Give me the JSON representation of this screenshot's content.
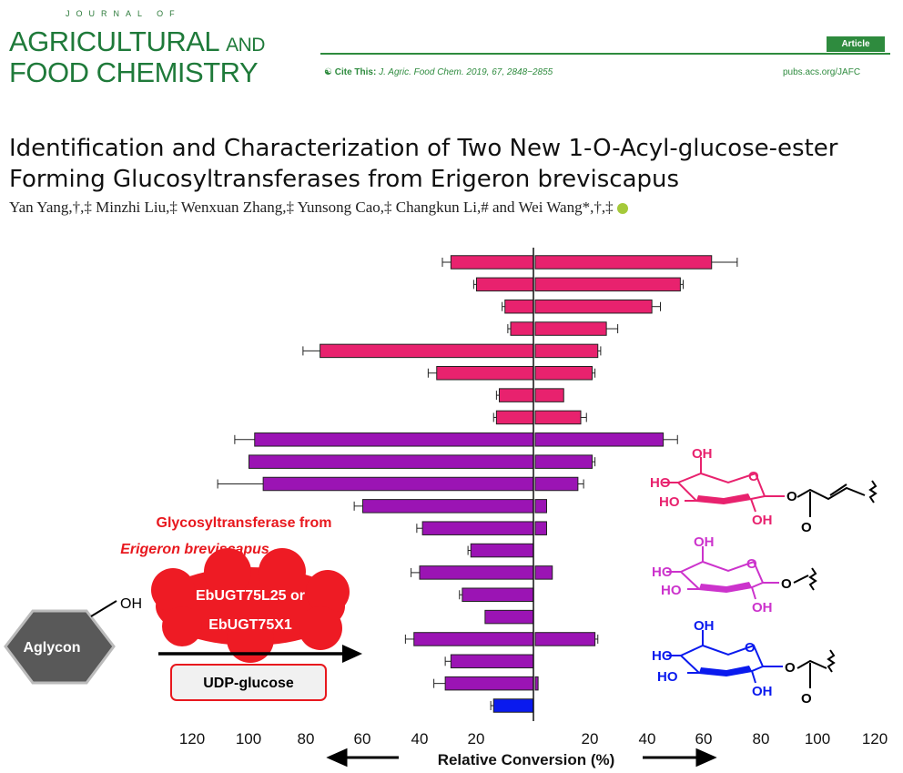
{
  "journal": {
    "line1": "JOURNAL OF",
    "line2": "AGRICULTURAL",
    "line2_and": "AND",
    "line3": "FOOD CHEMISTRY",
    "badge": "Article",
    "cite_label": "Cite This:",
    "cite_text": "J. Agric. Food Chem. 2019, 67, 2848−2855",
    "url": "pubs.acs.org/JAFC"
  },
  "paper": {
    "title": "Identification and Characterization of Two New 1-O-Acyl-glucose-ester Forming Glucosyltransferases from Erigeron breviscapus",
    "authors": "Yan Yang,†,‡ Minzhi Liu,‡ Wenxuan Zhang,‡ Yunsong Cao,‡ Changkun Li,# and Wei Wang*,†,‡"
  },
  "scheme": {
    "enzyme_source_line1": "Glycosyltransferase from",
    "enzyme_source_line2": "Erigeron breviscapus",
    "enzyme_line1": "EbUGT75L25 or",
    "enzyme_line2": "EbUGT75X1",
    "aglycon": "Aglycon",
    "oh": "OH",
    "cosubstrate": "UDP-glucose"
  },
  "colors": {
    "pink": "#e8226e",
    "purple": "#9b14b4",
    "blue": "#0a1aee",
    "red_text": "#e8181e",
    "cloud": "#ee1b24",
    "hexagon": "#595959",
    "green": "#2e8b3e"
  },
  "chart_data": {
    "type": "bar",
    "orientation": "horizontal-diverging",
    "xlabel": "Relative Conversion (%)",
    "xticks_left": [
      "120",
      "100",
      "80",
      "60",
      "40",
      "20"
    ],
    "xticks_right": [
      "20",
      "40",
      "60",
      "80",
      "100",
      "120"
    ],
    "xlim": [
      0,
      120
    ],
    "series": [
      {
        "name": "",
        "side": "left",
        "values": [
          29,
          20,
          10,
          8,
          75,
          34,
          12,
          13,
          98,
          100,
          95,
          60,
          39,
          22,
          40,
          25,
          17,
          42,
          29,
          31,
          14
        ],
        "errors": [
          3,
          1,
          1,
          1,
          6,
          3,
          1,
          1,
          7,
          0,
          16,
          3,
          2,
          1,
          3,
          1,
          0,
          3,
          2,
          4,
          1
        ]
      },
      {
        "name": "",
        "side": "right",
        "values": [
          62,
          51,
          41,
          25,
          22,
          20,
          10,
          16,
          45,
          20,
          15,
          4,
          4,
          0,
          6,
          0,
          0,
          21,
          0,
          1,
          0
        ],
        "errors": [
          9,
          1,
          3,
          4,
          1,
          1,
          0,
          2,
          5,
          1,
          2,
          0,
          0,
          0,
          0,
          0,
          0,
          1,
          0,
          0,
          0
        ]
      }
    ],
    "bar_colors": [
      "pink",
      "pink",
      "pink",
      "pink",
      "pink",
      "pink",
      "pink",
      "pink",
      "purple",
      "purple",
      "purple",
      "purple",
      "purple",
      "purple",
      "purple",
      "purple",
      "purple",
      "purple",
      "purple",
      "purple",
      "blue"
    ]
  },
  "structures": [
    {
      "color": "pink",
      "labels": [
        "OH",
        "HO",
        "HO",
        "OH",
        "O",
        "O",
        "O"
      ]
    },
    {
      "color": "magenta",
      "labels": [
        "OH",
        "HO",
        "HO",
        "OH",
        "O",
        "O"
      ]
    },
    {
      "color": "blue",
      "labels": [
        "OH",
        "HO",
        "HO",
        "OH",
        "O",
        "O",
        "O"
      ]
    }
  ]
}
